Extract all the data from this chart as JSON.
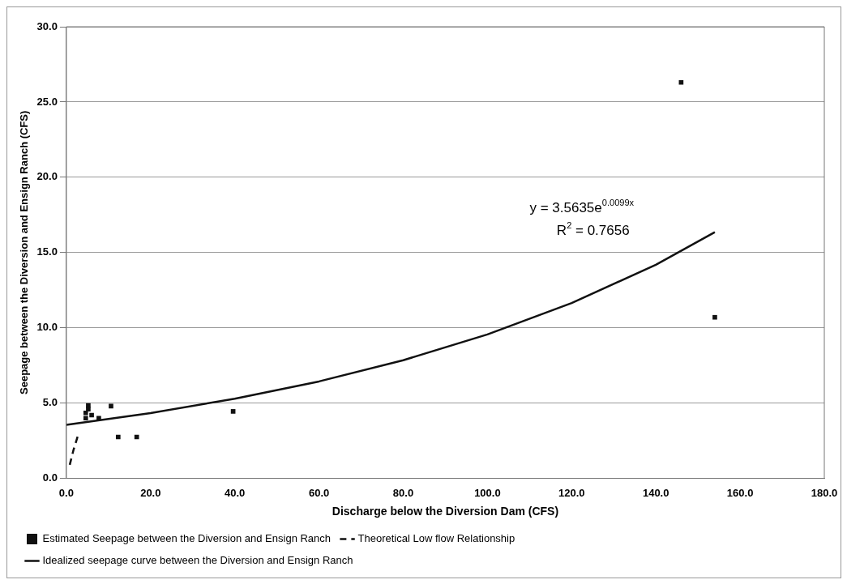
{
  "chart_data": {
    "type": "scatter",
    "xlabel": "Discharge below the Diversion Dam (CFS)",
    "ylabel": "Seepage between the Diversion and Ensign Ranch (CFS)",
    "xlim": [
      0,
      180
    ],
    "xticks": [
      {
        "value": 0,
        "label": "0.0"
      },
      {
        "value": 20,
        "label": "20.0"
      },
      {
        "value": 40,
        "label": "40.0"
      },
      {
        "value": 60,
        "label": "60.0"
      },
      {
        "value": 80,
        "label": "80.0"
      },
      {
        "value": 100,
        "label": "100.0"
      },
      {
        "value": 120,
        "label": "120.0"
      },
      {
        "value": 140,
        "label": "140.0"
      },
      {
        "value": 160,
        "label": "160.0"
      },
      {
        "value": 180,
        "label": "180.0"
      }
    ],
    "ylim": [
      0,
      30
    ],
    "yticks": [
      {
        "value": 0,
        "label": "0.0"
      },
      {
        "value": 5,
        "label": "5.0"
      },
      {
        "value": 10,
        "label": "10.0"
      },
      {
        "value": 15,
        "label": "15.0"
      },
      {
        "value": 20,
        "label": "20.0"
      },
      {
        "value": 25,
        "label": "25.0"
      },
      {
        "value": 30,
        "label": "30.0"
      }
    ],
    "grid": "y",
    "legend": "bottom",
    "annotations": [
      "y = 3.5635e$^{0.0099x}$",
      "R$^{2}$ = 0.7656"
    ],
    "series": [
      {
        "name": "Estimated Seepage between the Diversion and Ensign Ranch",
        "marker": "square",
        "color": "#111111",
        "x": [
          5.2,
          5.2,
          4.6,
          4.6,
          6.0,
          7.7,
          10.6,
          12.3,
          16.7,
          39.6,
          146,
          154
        ],
        "values": [
          4.85,
          4.6,
          4.35,
          4.0,
          4.2,
          4.0,
          4.8,
          2.75,
          2.75,
          4.45,
          26.3,
          10.7
        ]
      },
      {
        "name": "Theoretical Low flow Relationship",
        "type": "line",
        "line_style": "dashed",
        "marker": "none",
        "color": "#111111",
        "x": [
          0.8,
          1.7,
          2.7
        ],
        "values": [
          0.9,
          1.9,
          2.8
        ]
      },
      {
        "name": "Idealized seepage curve between the Diversion and Ensign Ranch",
        "type": "line",
        "line_style": "solid",
        "marker": "none",
        "color": "#111111",
        "x": [
          0,
          20,
          40,
          60,
          80,
          100,
          120,
          140,
          154
        ],
        "values": [
          3.56,
          4.34,
          5.29,
          6.44,
          7.85,
          9.56,
          11.65,
          14.19,
          16.35
        ]
      }
    ]
  }
}
